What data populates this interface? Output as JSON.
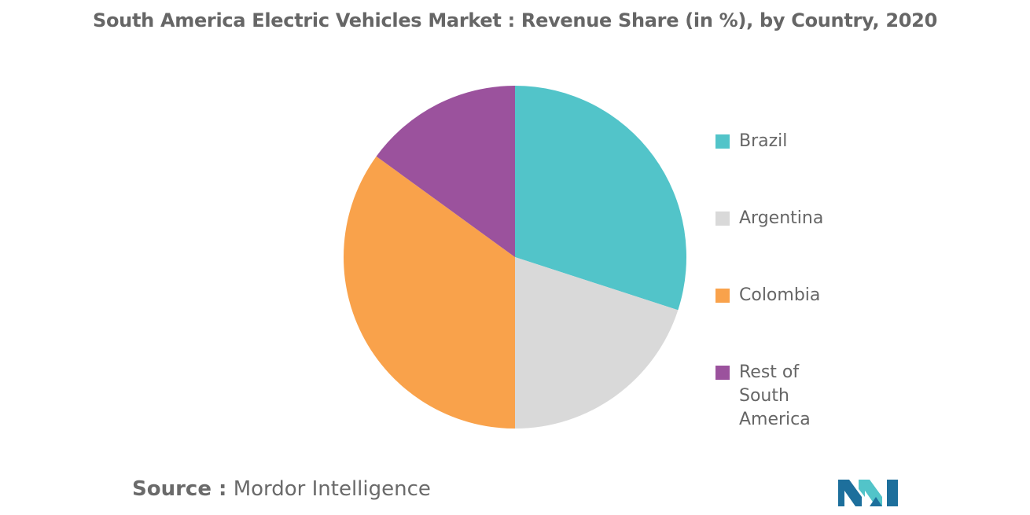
{
  "title": "South America Electric Vehicles Market : Revenue Share (in %), by Country, 2020",
  "chart_data": {
    "type": "pie",
    "title": "South America Electric Vehicles Market : Revenue Share (in %), by Country, 2020",
    "legend_position": "right",
    "categories": [
      "Brazil",
      "Argentina",
      "Colombia",
      "Rest of South America"
    ],
    "values": [
      30,
      20,
      35,
      15
    ],
    "colors": [
      "#52c4c9",
      "#d9d9d9",
      "#f9a24b",
      "#9b529d"
    ]
  },
  "legend": {
    "items": [
      {
        "label": "Brazil",
        "color": "#52c4c9"
      },
      {
        "label": "Argentina",
        "color": "#d9d9d9"
      },
      {
        "label": "Colombia",
        "color": "#f9a24b"
      },
      {
        "label": "Rest of South America",
        "color": "#9b529d"
      }
    ]
  },
  "source": {
    "label": "Source :",
    "text": "Mordor Intelligence"
  },
  "logo": {
    "icon": "mordor-intelligence-logo-icon",
    "color_dark": "#1d6f9c",
    "color_light": "#52c4c9"
  }
}
